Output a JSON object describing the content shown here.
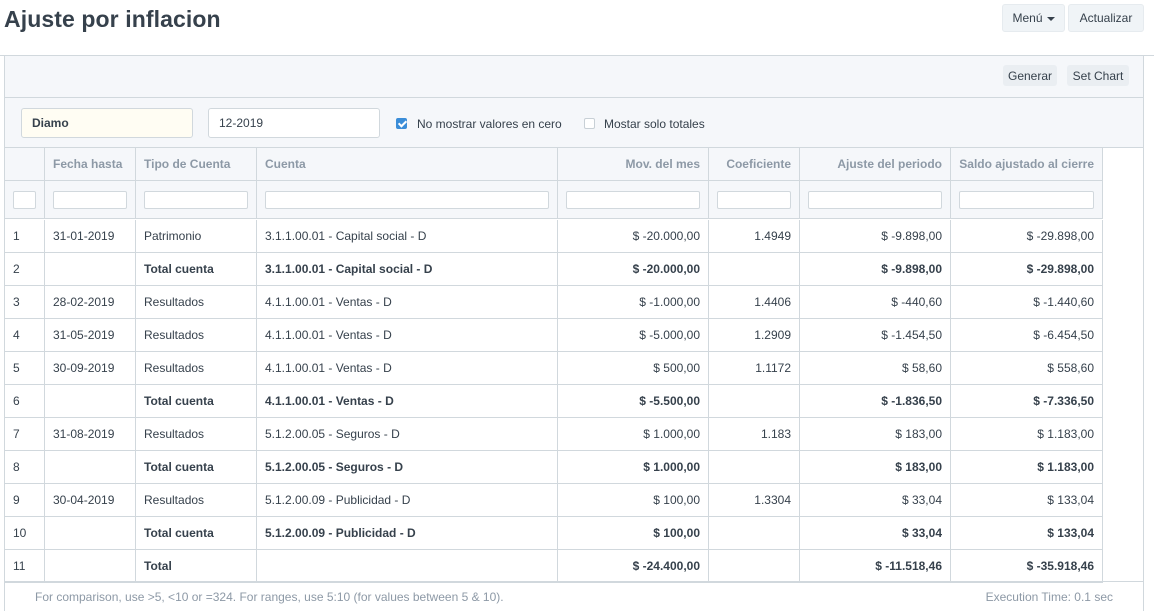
{
  "page": {
    "title": "Ajuste por inflacion"
  },
  "header": {
    "menu_label": "Menú",
    "refresh_label": "Actualizar"
  },
  "toolbar": {
    "generate_label": "Generar",
    "set_chart_label": "Set Chart"
  },
  "filters": {
    "company": "Diamo",
    "period": "12-2019",
    "hide_zero_label": "No mostrar valores en cero",
    "hide_zero_checked": true,
    "totals_only_label": "Mostar solo totales",
    "totals_only_checked": false
  },
  "table": {
    "columns": [
      "",
      "Fecha hasta",
      "Tipo de Cuenta",
      "Cuenta",
      "Mov. del mes",
      "Coeficiente",
      "Ajuste del periodo",
      "Saldo ajustado al cierre"
    ],
    "rows": [
      {
        "n": "1",
        "fecha": "31-01-2019",
        "tipo": "Patrimonio",
        "cuenta": "3.1.1.00.01 - Capital social - D",
        "mov": "$ -20.000,00",
        "coef": "1.4949",
        "ajuste": "$ -9.898,00",
        "saldo": "$ -29.898,00",
        "bold": false
      },
      {
        "n": "2",
        "fecha": "",
        "tipo": "Total cuenta",
        "cuenta": "3.1.1.00.01 - Capital social - D",
        "mov": "$ -20.000,00",
        "coef": "",
        "ajuste": "$ -9.898,00",
        "saldo": "$ -29.898,00",
        "bold": true
      },
      {
        "n": "3",
        "fecha": "28-02-2019",
        "tipo": "Resultados",
        "cuenta": "4.1.1.00.01 - Ventas - D",
        "mov": "$ -1.000,00",
        "coef": "1.4406",
        "ajuste": "$ -440,60",
        "saldo": "$ -1.440,60",
        "bold": false
      },
      {
        "n": "4",
        "fecha": "31-05-2019",
        "tipo": "Resultados",
        "cuenta": "4.1.1.00.01 - Ventas - D",
        "mov": "$ -5.000,00",
        "coef": "1.2909",
        "ajuste": "$ -1.454,50",
        "saldo": "$ -6.454,50",
        "bold": false
      },
      {
        "n": "5",
        "fecha": "30-09-2019",
        "tipo": "Resultados",
        "cuenta": "4.1.1.00.01 - Ventas - D",
        "mov": "$ 500,00",
        "coef": "1.1172",
        "ajuste": "$ 58,60",
        "saldo": "$ 558,60",
        "bold": false
      },
      {
        "n": "6",
        "fecha": "",
        "tipo": "Total cuenta",
        "cuenta": "4.1.1.00.01 - Ventas - D",
        "mov": "$ -5.500,00",
        "coef": "",
        "ajuste": "$ -1.836,50",
        "saldo": "$ -7.336,50",
        "bold": true
      },
      {
        "n": "7",
        "fecha": "31-08-2019",
        "tipo": "Resultados",
        "cuenta": "5.1.2.00.05 - Seguros - D",
        "mov": "$ 1.000,00",
        "coef": "1.183",
        "ajuste": "$ 183,00",
        "saldo": "$ 1.183,00",
        "bold": false
      },
      {
        "n": "8",
        "fecha": "",
        "tipo": "Total cuenta",
        "cuenta": "5.1.2.00.05 - Seguros - D",
        "mov": "$ 1.000,00",
        "coef": "",
        "ajuste": "$ 183,00",
        "saldo": "$ 1.183,00",
        "bold": true
      },
      {
        "n": "9",
        "fecha": "30-04-2019",
        "tipo": "Resultados",
        "cuenta": "5.1.2.00.09 - Publicidad - D",
        "mov": "$ 100,00",
        "coef": "1.3304",
        "ajuste": "$ 33,04",
        "saldo": "$ 133,04",
        "bold": false
      },
      {
        "n": "10",
        "fecha": "",
        "tipo": "Total cuenta",
        "cuenta": "5.1.2.00.09 - Publicidad - D",
        "mov": "$ 100,00",
        "coef": "",
        "ajuste": "$ 33,04",
        "saldo": "$ 133,04",
        "bold": true
      },
      {
        "n": "11",
        "fecha": "",
        "tipo": "Total",
        "cuenta": "",
        "mov": "$ -24.400,00",
        "coef": "",
        "ajuste": "$ -11.518,46",
        "saldo": "$ -35.918,46",
        "bold": true
      }
    ]
  },
  "footer": {
    "hint": "For comparison, use >5, <10 or =324. For ranges, use 5:10 (for values between 5 & 10).",
    "execution_time": "Execution Time: 0.1 sec"
  },
  "colors": {
    "accent": "#3b8dd8",
    "border": "#d1d8dd",
    "text": "#36414c",
    "muted": "#8d99a6"
  }
}
